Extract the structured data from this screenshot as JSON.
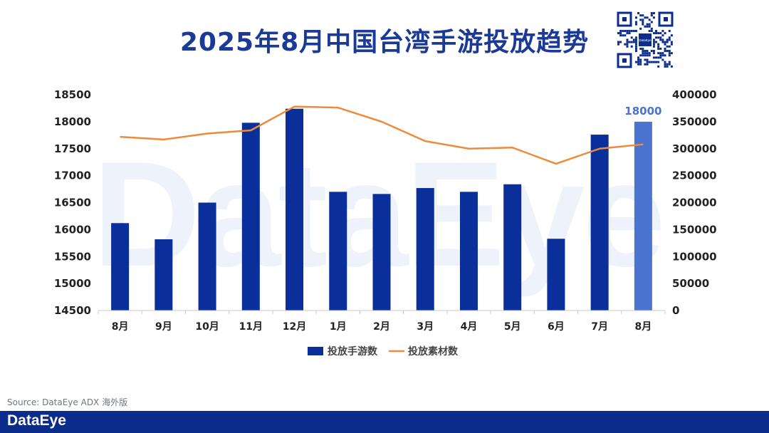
{
  "title": "2025年8月中国台湾手游投放趋势",
  "source": "Source: DataEye ADX 海外版",
  "footer_logo": "DataEye",
  "qr_center_label": "DataEye",
  "watermark": "DataEye",
  "colors": {
    "bar": "#0a2e9a",
    "bar_highlight": "#4a74cd",
    "line": "#ee8a3c",
    "title": "#1b3a97",
    "footer": "#0c2c8c"
  },
  "chart_data": {
    "type": "bar",
    "categories": [
      "8月",
      "9月",
      "10月",
      "11月",
      "12月",
      "1月",
      "2月",
      "3月",
      "4月",
      "5月",
      "6月",
      "7月",
      "8月"
    ],
    "series": [
      {
        "name": "投放手游数",
        "type": "bar",
        "axis": "left",
        "values": [
          16120,
          15820,
          16500,
          17980,
          18240,
          16700,
          16660,
          16770,
          16700,
          16840,
          15830,
          17760,
          18000
        ]
      },
      {
        "name": "投放素材数",
        "type": "line",
        "axis": "right",
        "values": [
          322000,
          317000,
          328000,
          334000,
          378000,
          376000,
          350000,
          314000,
          300000,
          302000,
          272000,
          300000,
          308000
        ]
      }
    ],
    "highlight_index": 12,
    "data_labels": [
      {
        "index": 12,
        "text": "18000"
      }
    ],
    "y_left": {
      "min": 14500,
      "max": 18500,
      "ticks": [
        "14500",
        "15000",
        "15500",
        "16000",
        "16500",
        "17000",
        "17500",
        "18000",
        "18500"
      ]
    },
    "y_right": {
      "min": 0,
      "max": 400000,
      "ticks": [
        "0",
        "50000",
        "100000",
        "150000",
        "200000",
        "250000",
        "300000",
        "350000",
        "400000"
      ]
    },
    "grid": false,
    "legend_position": "bottom"
  }
}
